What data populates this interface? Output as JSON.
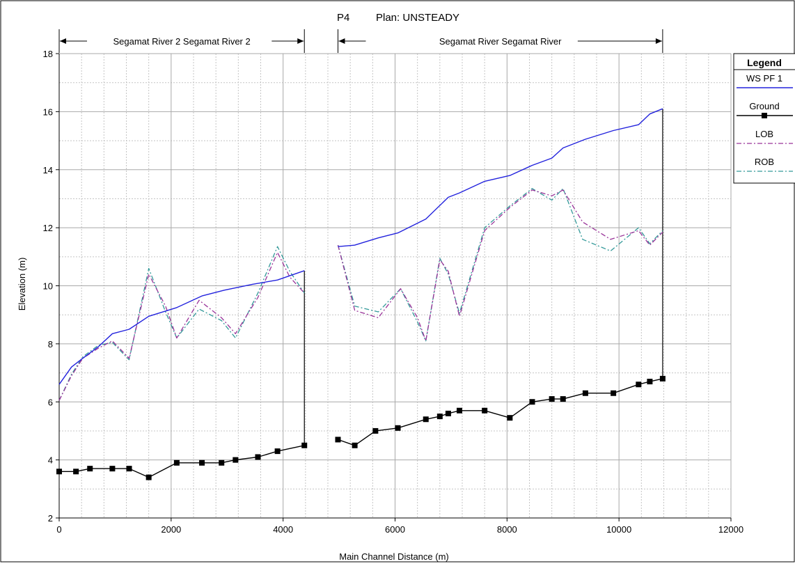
{
  "chart_data": {
    "type": "line",
    "title_left": "P4",
    "title_right": "Plan: UNSTEADY",
    "xlabel": "Main Channel Distance (m)",
    "ylabel": "Elevation (m)",
    "xlim": [
      0,
      12000
    ],
    "ylim": [
      2,
      18
    ],
    "x_ticks": [
      0,
      2000,
      4000,
      6000,
      8000,
      10000,
      12000
    ],
    "y_ticks": [
      2,
      4,
      6,
      8,
      10,
      12,
      14,
      16,
      18
    ],
    "x_minor_step": 400,
    "y_minor_step": 1,
    "grid": true,
    "legend_position": "right",
    "legend_title": "Legend",
    "reaches": [
      {
        "label": "Segamat River  2 Segamat River 2",
        "x_start": 0,
        "x_end": 4380
      },
      {
        "label": "Segamat River Segamat River",
        "x_start": 4980,
        "x_end": 10780
      }
    ],
    "junction_lines": [
      {
        "x": 4380,
        "y_from": 4.5,
        "y_to": 10.52
      },
      {
        "x": 10780,
        "y_from": 6.8,
        "y_to": 16.1
      }
    ],
    "series": [
      {
        "name": "WS  PF 1",
        "color": "#2222dd",
        "style": "solid",
        "segments": [
          [
            [
              0,
              6.6
            ],
            [
              220,
              7.2
            ],
            [
              420,
              7.5
            ],
            [
              700,
              7.9
            ],
            [
              950,
              8.35
            ],
            [
              1250,
              8.5
            ],
            [
              1600,
              8.95
            ],
            [
              2100,
              9.25
            ],
            [
              2550,
              9.65
            ],
            [
              2950,
              9.85
            ],
            [
              3450,
              10.05
            ],
            [
              3900,
              10.2
            ],
            [
              4380,
              10.52
            ]
          ],
          [
            [
              4980,
              11.35
            ],
            [
              5280,
              11.4
            ],
            [
              5700,
              11.65
            ],
            [
              6050,
              11.82
            ],
            [
              6550,
              12.3
            ],
            [
              6950,
              13.05
            ],
            [
              7150,
              13.2
            ],
            [
              7600,
              13.6
            ],
            [
              8050,
              13.8
            ],
            [
              8450,
              14.15
            ],
            [
              8800,
              14.4
            ],
            [
              9000,
              14.75
            ],
            [
              9400,
              15.05
            ],
            [
              9900,
              15.35
            ],
            [
              10350,
              15.55
            ],
            [
              10550,
              15.92
            ],
            [
              10780,
              16.1
            ]
          ]
        ]
      },
      {
        "name": "Ground",
        "color": "#000000",
        "style": "solid-markers",
        "segments": [
          [
            [
              0,
              3.6
            ],
            [
              300,
              3.6
            ],
            [
              550,
              3.7
            ],
            [
              950,
              3.7
            ],
            [
              1250,
              3.7
            ],
            [
              1600,
              3.4
            ],
            [
              2100,
              3.9
            ],
            [
              2550,
              3.9
            ],
            [
              2900,
              3.9
            ],
            [
              3150,
              4.0
            ],
            [
              3550,
              4.1
            ],
            [
              3900,
              4.3
            ],
            [
              4380,
              4.5
            ]
          ],
          [
            [
              4980,
              4.7
            ],
            [
              5280,
              4.5
            ],
            [
              5650,
              5.0
            ],
            [
              6050,
              5.1
            ],
            [
              6550,
              5.4
            ],
            [
              6800,
              5.5
            ],
            [
              6950,
              5.6
            ],
            [
              7150,
              5.7
            ],
            [
              7600,
              5.7
            ],
            [
              8050,
              5.45
            ],
            [
              8450,
              6.0
            ],
            [
              8800,
              6.1
            ],
            [
              9000,
              6.1
            ],
            [
              9400,
              6.3
            ],
            [
              9900,
              6.3
            ],
            [
              10350,
              6.6
            ],
            [
              10550,
              6.7
            ],
            [
              10780,
              6.8
            ]
          ]
        ]
      },
      {
        "name": "LOB",
        "color": "#993399",
        "style": "dashdot",
        "segments": [
          [
            [
              0,
              6.05
            ],
            [
              220,
              6.9
            ],
            [
              420,
              7.5
            ],
            [
              700,
              7.85
            ],
            [
              950,
              8.1
            ],
            [
              1250,
              7.5
            ],
            [
              1600,
              10.4
            ],
            [
              1900,
              9.3
            ],
            [
              2100,
              8.2
            ],
            [
              2500,
              9.5
            ],
            [
              2900,
              8.9
            ],
            [
              3150,
              8.35
            ],
            [
              3550,
              9.6
            ],
            [
              3900,
              11.15
            ],
            [
              4120,
              10.3
            ],
            [
              4380,
              9.75
            ]
          ],
          [
            [
              4980,
              11.4
            ],
            [
              5280,
              9.15
            ],
            [
              5700,
              8.9
            ],
            [
              6100,
              9.9
            ],
            [
              6400,
              8.9
            ],
            [
              6550,
              8.1
            ],
            [
              6800,
              10.9
            ],
            [
              6950,
              10.5
            ],
            [
              7150,
              8.95
            ],
            [
              7600,
              11.9
            ],
            [
              8050,
              12.7
            ],
            [
              8450,
              13.3
            ],
            [
              8800,
              13.1
            ],
            [
              9000,
              13.3
            ],
            [
              9350,
              12.2
            ],
            [
              9850,
              11.6
            ],
            [
              10350,
              11.9
            ],
            [
              10550,
              11.4
            ],
            [
              10780,
              11.85
            ]
          ]
        ]
      },
      {
        "name": "ROB",
        "color": "#339999",
        "style": "dashdot",
        "segments": [
          [
            [
              0,
              6.05
            ],
            [
              220,
              6.95
            ],
            [
              420,
              7.55
            ],
            [
              700,
              7.95
            ],
            [
              950,
              8.05
            ],
            [
              1250,
              7.45
            ],
            [
              1600,
              10.6
            ],
            [
              1900,
              9.1
            ],
            [
              2100,
              8.2
            ],
            [
              2500,
              9.2
            ],
            [
              2900,
              8.8
            ],
            [
              3150,
              8.2
            ],
            [
              3550,
              9.75
            ],
            [
              3900,
              11.35
            ],
            [
              4120,
              10.5
            ],
            [
              4380,
              9.75
            ]
          ],
          [
            [
              4980,
              11.4
            ],
            [
              5280,
              9.3
            ],
            [
              5700,
              9.1
            ],
            [
              6100,
              9.9
            ],
            [
              6400,
              8.75
            ],
            [
              6550,
              8.1
            ],
            [
              6800,
              10.95
            ],
            [
              6950,
              10.4
            ],
            [
              7150,
              9.05
            ],
            [
              7600,
              12.0
            ],
            [
              8050,
              12.75
            ],
            [
              8450,
              13.35
            ],
            [
              8800,
              12.95
            ],
            [
              9000,
              13.35
            ],
            [
              9350,
              11.6
            ],
            [
              9850,
              11.2
            ],
            [
              10350,
              12.0
            ],
            [
              10550,
              11.45
            ],
            [
              10780,
              11.9
            ]
          ]
        ]
      }
    ]
  }
}
